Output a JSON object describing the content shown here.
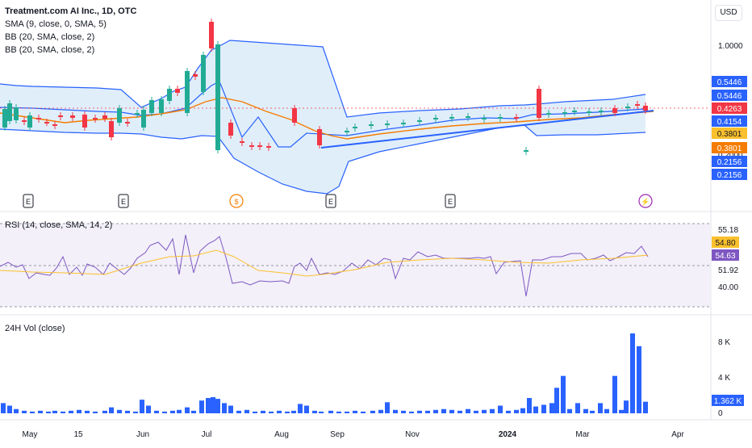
{
  "header": {
    "title": "Treatment.com AI Inc., 1D, OTC",
    "indicators": [
      "SMA (9, close, 0, SMA, 5)",
      "BB (20, SMA, close, 2)",
      "BB (20, SMA, close, 2)"
    ],
    "currency_button": "USD"
  },
  "price_axis": {
    "ticks": [
      "1.0000",
      "0.2000"
    ]
  },
  "price_badges": [
    {
      "label": "0.5446",
      "color": "#2962ff",
      "value": 0.5446
    },
    {
      "label": "0.5446",
      "color": "#2962ff",
      "value": 0.5446
    },
    {
      "label": "0.4263",
      "color": "#f23645",
      "value": 0.4263
    },
    {
      "label": "0.4154",
      "color": "#2962ff",
      "value": 0.4154
    },
    {
      "label": "0.3801",
      "color": "#fbc02d",
      "value": 0.3801
    },
    {
      "label": "0.3801",
      "color": "#f57c00",
      "value": 0.3801
    },
    {
      "label": "0.2156",
      "color": "#2962ff",
      "value": 0.2156
    },
    {
      "label": "0.2156",
      "color": "#2962ff",
      "value": 0.2156
    }
  ],
  "event_markers": [
    "E",
    "E",
    "E",
    "$",
    "E",
    "E",
    "⚡"
  ],
  "rsi_pane": {
    "label": "RSI (14, close, SMA, 14, 2)",
    "ticks": [
      "55.18",
      "51.92",
      "40.00"
    ],
    "badges": [
      {
        "label": "54.80",
        "color": "#fbc02d",
        "value": 54.8
      },
      {
        "label": "54.63",
        "color": "#7e57c2",
        "value": 54.63
      }
    ]
  },
  "vol_pane": {
    "label": "24H Vol (close)",
    "ticks": [
      "8 K",
      "4 K",
      "0"
    ],
    "badge": {
      "label": "1.362 K",
      "color": "#2962ff",
      "value": 1362
    }
  },
  "time_axis": [
    "May",
    "15",
    "Jun",
    "Jul",
    "Aug",
    "Sep",
    "Nov",
    "2024",
    "Mar",
    "Mar",
    "Apr"
  ],
  "colors": {
    "up": "#22ab94",
    "down": "#f23645",
    "sma": "#f57c00",
    "bb": "#2962ff",
    "bbfill": "#d6e8f8",
    "rsi": "#7e57c2",
    "rsima": "#fbc02d",
    "vol": "#2962ff"
  },
  "chart_data": [
    {
      "type": "candlestick",
      "title": "Treatment.com AI Inc., 1D, OTC",
      "x": [
        "May",
        "15",
        "Jun",
        "Jul",
        "Aug",
        "Sep",
        "Nov",
        "2024",
        "Mar",
        "Apr"
      ],
      "close_last": 0.4263,
      "series": [
        {
          "name": "SMA (9, close, 0, SMA, 5)",
          "last": 0.3801
        },
        {
          "name": "BB (20, SMA, close, 2) upper",
          "last": 0.5446
        },
        {
          "name": "BB (20, SMA, close, 2) basis",
          "last": 0.4154
        },
        {
          "name": "BB (20, SMA, close, 2) lower",
          "last": 0.2156
        }
      ]
    },
    {
      "type": "line",
      "title": "RSI (14, close, SMA, 14, 2)",
      "series": [
        {
          "name": "RSI",
          "last": 54.63
        },
        {
          "name": "SMA",
          "last": 54.8
        }
      ],
      "bands": [
        40.0,
        55.18
      ]
    },
    {
      "type": "bar",
      "title": "24H Vol (close)",
      "last": 1362,
      "ylim": [
        0,
        9500
      ]
    }
  ]
}
